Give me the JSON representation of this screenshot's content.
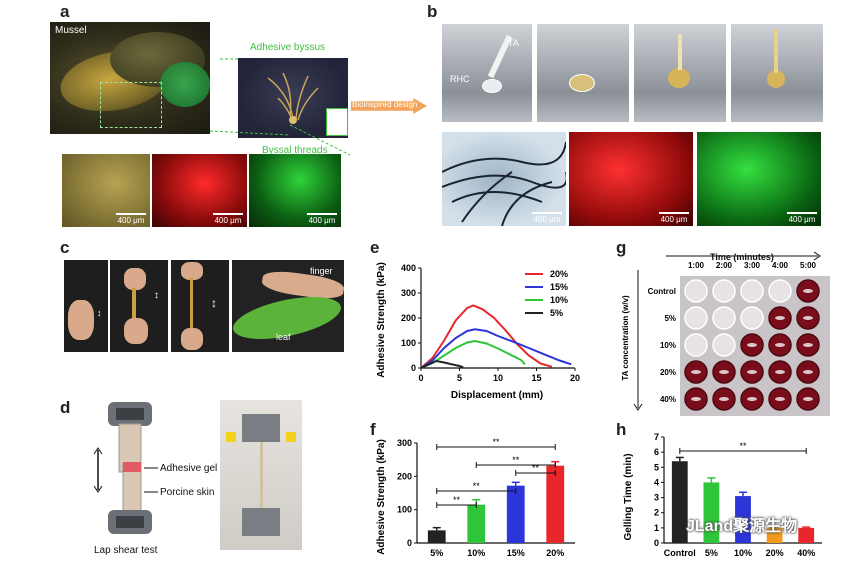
{
  "panels": {
    "a": {
      "letter": "a",
      "mussel_label": "Mussel",
      "byssus_label": "Adhesive byssus",
      "threads_label": "Byssal threads",
      "arrow_label": "Bioinspired design",
      "scale": "400 μm"
    },
    "b": {
      "letter": "b",
      "ta_label": "TA",
      "rhc_label": "RHC",
      "scale": "400 μm"
    },
    "c": {
      "letter": "c",
      "finger_label": "finger",
      "leaf_label": "leaf"
    },
    "d": {
      "letter": "d",
      "adhesive_label": "Adhesive gel",
      "skin_label": "Porcine skin",
      "caption": "Lap shear test"
    },
    "g": {
      "letter": "g",
      "time_title": "Time (minutes)",
      "times": [
        "1:00",
        "2:00",
        "3:00",
        "4:00",
        "5:00"
      ],
      "ylabel": "TA concentration (w/v)",
      "rows": [
        "Control",
        "5%",
        "10%",
        "20%",
        "40%"
      ],
      "gelled_from_col": [
        5,
        4,
        3,
        1,
        1
      ]
    },
    "watermark": "JLand聚源生物",
    "colors": {
      "red": "#e8262b",
      "blue": "#2c35d8",
      "green": "#2fc53a",
      "black": "#222222",
      "orange": "#f29a1c",
      "highlight": "#2ea84a"
    }
  },
  "chart_data": [
    {
      "panel": "e",
      "letter": "e",
      "type": "line",
      "xlabel": "Displacement (mm)",
      "ylabel": "Adhesive Strength (kPa)",
      "xlim": [
        0,
        20
      ],
      "ylim": [
        0,
        400
      ],
      "xticks": [
        "0",
        "5",
        "10",
        "15",
        "20"
      ],
      "yticks": [
        "0",
        "100",
        "200",
        "300",
        "400"
      ],
      "legend": "top-right",
      "series": [
        {
          "name": "20%",
          "color": "#e8262b",
          "points": [
            [
              0,
              0
            ],
            [
              1.5,
              40
            ],
            [
              3,
              110
            ],
            [
              4.5,
              190
            ],
            [
              6,
              240
            ],
            [
              6.8,
              250
            ],
            [
              8,
              235
            ],
            [
              9.5,
              200
            ],
            [
              11,
              150
            ],
            [
              12.5,
              95
            ],
            [
              14,
              50
            ],
            [
              15.5,
              18
            ],
            [
              17,
              5
            ]
          ]
        },
        {
          "name": "15%",
          "color": "#2c35d8",
          "points": [
            [
              0,
              0
            ],
            [
              1.5,
              30
            ],
            [
              3,
              80
            ],
            [
              4.5,
              120
            ],
            [
              6,
              148
            ],
            [
              7,
              155
            ],
            [
              8.5,
              148
            ],
            [
              10,
              128
            ],
            [
              12,
              105
            ],
            [
              14,
              80
            ],
            [
              16,
              55
            ],
            [
              18,
              30
            ],
            [
              19.5,
              15
            ]
          ]
        },
        {
          "name": "10%",
          "color": "#2fc53a",
          "points": [
            [
              0,
              0
            ],
            [
              1.5,
              20
            ],
            [
              3,
              50
            ],
            [
              4.5,
              80
            ],
            [
              6,
              102
            ],
            [
              7,
              108
            ],
            [
              8.5,
              98
            ],
            [
              10,
              78
            ],
            [
              11.5,
              55
            ],
            [
              13,
              32
            ],
            [
              13.5,
              15
            ]
          ]
        },
        {
          "name": "5%",
          "color": "#222222",
          "points": [
            [
              0,
              0
            ],
            [
              1,
              15
            ],
            [
              2,
              28
            ],
            [
              3,
              22
            ],
            [
              4,
              15
            ],
            [
              5,
              8
            ],
            [
              5.5,
              3
            ]
          ]
        }
      ]
    },
    {
      "panel": "f",
      "letter": "f",
      "type": "bar",
      "ylabel": "Adhesive Strength (kPa)",
      "categories": [
        "5%",
        "10%",
        "15%",
        "20%"
      ],
      "values": [
        38,
        115,
        172,
        232
      ],
      "errors": [
        8,
        15,
        10,
        12
      ],
      "colors": [
        "#222222",
        "#2fc53a",
        "#2c35d8",
        "#e8262b"
      ],
      "ylim": [
        0,
        300
      ],
      "yticks": [
        "0",
        "100",
        "200",
        "300"
      ],
      "significance": [
        {
          "from": 0,
          "to": 3,
          "label": "**"
        },
        {
          "from": 1,
          "to": 3,
          "label": "**"
        },
        {
          "from": 2,
          "to": 3,
          "label": "**"
        },
        {
          "from": 0,
          "to": 2,
          "label": "**"
        },
        {
          "from": 0,
          "to": 1,
          "label": "**"
        }
      ]
    },
    {
      "panel": "h",
      "letter": "h",
      "type": "bar",
      "ylabel": "Gelling Time (min)",
      "categories": [
        "Control",
        "5%",
        "10%",
        "20%",
        "40%"
      ],
      "values": [
        5.4,
        4.0,
        3.1,
        1.0,
        1.0
      ],
      "errors": [
        0.25,
        0.3,
        0.25,
        0.05,
        0.05
      ],
      "colors": [
        "#222222",
        "#2fc53a",
        "#2c35d8",
        "#f29a1c",
        "#e8262b"
      ],
      "ylim": [
        0,
        7
      ],
      "yticks": [
        "0",
        "1",
        "2",
        "3",
        "4",
        "5",
        "6",
        "7"
      ],
      "significance": [
        {
          "from": 0,
          "to": 4,
          "label": "**"
        }
      ]
    }
  ]
}
